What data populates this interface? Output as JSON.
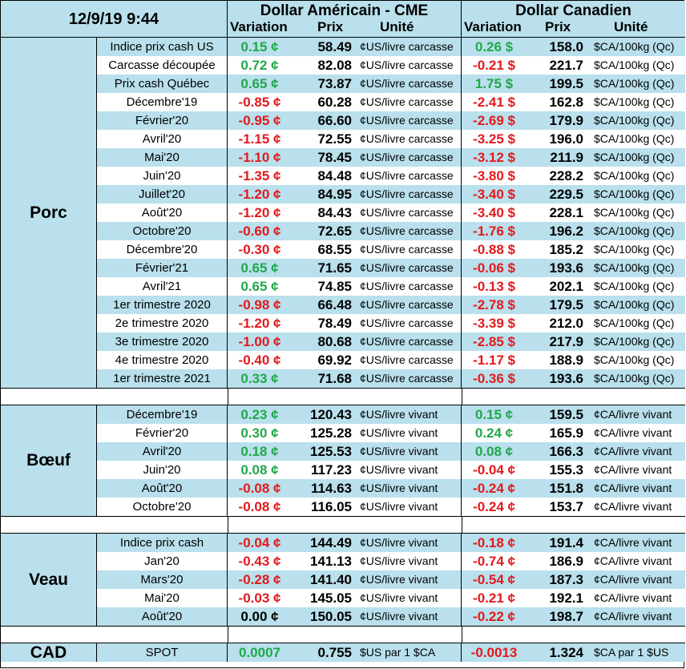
{
  "header": {
    "date": "12/9/19 9:44",
    "usd_title": "Dollar Américain - CME",
    "cad_title": "Dollar Canadien",
    "col_variation": "Variation",
    "col_prix": "Prix",
    "col_unite": "Unité"
  },
  "colors": {
    "positive": "#21a84a",
    "negative": "#e3191c",
    "row_blue": "#b9e0ec"
  },
  "sections": [
    {
      "name": "Porc",
      "rows": [
        {
          "label": "Indice prix cash US",
          "usd_var": "0.15 ¢",
          "usd_price": "58.49",
          "usd_unit": "¢US/livre carcasse",
          "cad_var": "0.26 $",
          "cad_price": "158.0",
          "cad_unit": "$CA/100kg (Qc)"
        },
        {
          "label": "Carcasse découpée",
          "usd_var": "0.72 ¢",
          "usd_price": "82.08",
          "usd_unit": "¢US/livre carcasse",
          "cad_var": "-0.21 $",
          "cad_price": "221.7",
          "cad_unit": "$CA/100kg (Qc)"
        },
        {
          "label": "Prix cash Québec",
          "usd_var": "0.65 ¢",
          "usd_price": "73.87",
          "usd_unit": "¢US/livre carcasse",
          "cad_var": "1.75 $",
          "cad_price": "199.5",
          "cad_unit": "$CA/100kg (Qc)"
        },
        {
          "label": "Décembre'19",
          "usd_var": "-0.85 ¢",
          "usd_price": "60.28",
          "usd_unit": "¢US/livre carcasse",
          "cad_var": "-2.41 $",
          "cad_price": "162.8",
          "cad_unit": "$CA/100kg (Qc)"
        },
        {
          "label": "Février'20",
          "usd_var": "-0.95 ¢",
          "usd_price": "66.60",
          "usd_unit": "¢US/livre carcasse",
          "cad_var": "-2.69 $",
          "cad_price": "179.9",
          "cad_unit": "$CA/100kg (Qc)"
        },
        {
          "label": "Avril'20",
          "usd_var": "-1.15 ¢",
          "usd_price": "72.55",
          "usd_unit": "¢US/livre carcasse",
          "cad_var": "-3.25 $",
          "cad_price": "196.0",
          "cad_unit": "$CA/100kg (Qc)"
        },
        {
          "label": "Mai'20",
          "usd_var": "-1.10 ¢",
          "usd_price": "78.45",
          "usd_unit": "¢US/livre carcasse",
          "cad_var": "-3.12 $",
          "cad_price": "211.9",
          "cad_unit": "$CA/100kg (Qc)"
        },
        {
          "label": "Juin'20",
          "usd_var": "-1.35 ¢",
          "usd_price": "84.48",
          "usd_unit": "¢US/livre carcasse",
          "cad_var": "-3.80 $",
          "cad_price": "228.2",
          "cad_unit": "$CA/100kg (Qc)"
        },
        {
          "label": "Juillet'20",
          "usd_var": "-1.20 ¢",
          "usd_price": "84.95",
          "usd_unit": "¢US/livre carcasse",
          "cad_var": "-3.40 $",
          "cad_price": "229.5",
          "cad_unit": "$CA/100kg (Qc)"
        },
        {
          "label": "Août'20",
          "usd_var": "-1.20 ¢",
          "usd_price": "84.43",
          "usd_unit": "¢US/livre carcasse",
          "cad_var": "-3.40 $",
          "cad_price": "228.1",
          "cad_unit": "$CA/100kg (Qc)"
        },
        {
          "label": "Octobre'20",
          "usd_var": "-0.60 ¢",
          "usd_price": "72.65",
          "usd_unit": "¢US/livre carcasse",
          "cad_var": "-1.76 $",
          "cad_price": "196.2",
          "cad_unit": "$CA/100kg (Qc)"
        },
        {
          "label": "Décembre'20",
          "usd_var": "-0.30 ¢",
          "usd_price": "68.55",
          "usd_unit": "¢US/livre carcasse",
          "cad_var": "-0.88 $",
          "cad_price": "185.2",
          "cad_unit": "$CA/100kg (Qc)"
        },
        {
          "label": "Février'21",
          "usd_var": "0.65 ¢",
          "usd_price": "71.65",
          "usd_unit": "¢US/livre carcasse",
          "cad_var": "-0.06 $",
          "cad_price": "193.6",
          "cad_unit": "$CA/100kg (Qc)"
        },
        {
          "label": "Avril'21",
          "usd_var": "0.65 ¢",
          "usd_price": "74.85",
          "usd_unit": "¢US/livre carcasse",
          "cad_var": "-0.13 $",
          "cad_price": "202.1",
          "cad_unit": "$CA/100kg (Qc)"
        },
        {
          "label": "1er trimestre 2020",
          "usd_var": "-0.98 ¢",
          "usd_price": "66.48",
          "usd_unit": "¢US/livre carcasse",
          "cad_var": "-2.78 $",
          "cad_price": "179.5",
          "cad_unit": "$CA/100kg (Qc)"
        },
        {
          "label": "2e trimestre 2020",
          "usd_var": "-1.20 ¢",
          "usd_price": "78.49",
          "usd_unit": "¢US/livre carcasse",
          "cad_var": "-3.39 $",
          "cad_price": "212.0",
          "cad_unit": "$CA/100kg (Qc)"
        },
        {
          "label": "3e trimestre 2020",
          "usd_var": "-1.00 ¢",
          "usd_price": "80.68",
          "usd_unit": "¢US/livre carcasse",
          "cad_var": "-2.85 $",
          "cad_price": "217.9",
          "cad_unit": "$CA/100kg (Qc)"
        },
        {
          "label": "4e trimestre 2020",
          "usd_var": "-0.40 ¢",
          "usd_price": "69.92",
          "usd_unit": "¢US/livre carcasse",
          "cad_var": "-1.17 $",
          "cad_price": "188.9",
          "cad_unit": "$CA/100kg (Qc)"
        },
        {
          "label": "1er trimestre 2021",
          "usd_var": "0.33 ¢",
          "usd_price": "71.68",
          "usd_unit": "¢US/livre carcasse",
          "cad_var": "-0.36 $",
          "cad_price": "193.6",
          "cad_unit": "$CA/100kg (Qc)"
        }
      ]
    },
    {
      "name": "Bœuf",
      "rows": [
        {
          "label": "Décembre'19",
          "usd_var": "0.23 ¢",
          "usd_price": "120.43",
          "usd_unit": "¢US/livre vivant",
          "cad_var": "0.15 ¢",
          "cad_price": "159.5",
          "cad_unit": "¢CA/livre vivant"
        },
        {
          "label": "Février'20",
          "usd_var": "0.30 ¢",
          "usd_price": "125.28",
          "usd_unit": "¢US/livre vivant",
          "cad_var": "0.24 ¢",
          "cad_price": "165.9",
          "cad_unit": "¢CA/livre vivant"
        },
        {
          "label": "Avril'20",
          "usd_var": "0.18 ¢",
          "usd_price": "125.53",
          "usd_unit": "¢US/livre vivant",
          "cad_var": "0.08 ¢",
          "cad_price": "166.3",
          "cad_unit": "¢CA/livre vivant"
        },
        {
          "label": "Juin'20",
          "usd_var": "0.08 ¢",
          "usd_price": "117.23",
          "usd_unit": "¢US/livre vivant",
          "cad_var": "-0.04 ¢",
          "cad_price": "155.3",
          "cad_unit": "¢CA/livre vivant"
        },
        {
          "label": "Août'20",
          "usd_var": "-0.08 ¢",
          "usd_price": "114.63",
          "usd_unit": "¢US/livre vivant",
          "cad_var": "-0.24 ¢",
          "cad_price": "151.8",
          "cad_unit": "¢CA/livre vivant"
        },
        {
          "label": "Octobre'20",
          "usd_var": "-0.08 ¢",
          "usd_price": "116.05",
          "usd_unit": "¢US/livre vivant",
          "cad_var": "-0.24 ¢",
          "cad_price": "153.7",
          "cad_unit": "¢CA/livre vivant"
        }
      ]
    },
    {
      "name": "Veau",
      "rows": [
        {
          "label": "Indice prix cash",
          "usd_var": "-0.04 ¢",
          "usd_price": "144.49",
          "usd_unit": "¢US/livre vivant",
          "cad_var": "-0.18 ¢",
          "cad_price": "191.4",
          "cad_unit": "¢CA/livre vivant"
        },
        {
          "label": "Jan'20",
          "usd_var": "-0.43 ¢",
          "usd_price": "141.13",
          "usd_unit": "¢US/livre vivant",
          "cad_var": "-0.74 ¢",
          "cad_price": "186.9",
          "cad_unit": "¢CA/livre vivant"
        },
        {
          "label": "Mars'20",
          "usd_var": "-0.28 ¢",
          "usd_price": "141.40",
          "usd_unit": "¢US/livre vivant",
          "cad_var": "-0.54 ¢",
          "cad_price": "187.3",
          "cad_unit": "¢CA/livre vivant"
        },
        {
          "label": "Mai'20",
          "usd_var": "-0.03 ¢",
          "usd_price": "145.05",
          "usd_unit": "¢US/livre vivant",
          "cad_var": "-0.21 ¢",
          "cad_price": "192.1",
          "cad_unit": "¢CA/livre vivant"
        },
        {
          "label": "Août'20",
          "usd_var": "0.00 ¢",
          "usd_price": "150.05",
          "usd_unit": "¢US/livre vivant",
          "cad_var": "-0.22 ¢",
          "cad_price": "198.7",
          "cad_unit": "¢CA/livre vivant"
        }
      ]
    },
    {
      "name": "CAD",
      "rows": [
        {
          "label": "SPOT",
          "usd_var": "0.0007",
          "usd_price": "0.755",
          "usd_unit": "$US par 1 $CA",
          "cad_var": "-0.0013",
          "cad_price": "1.324",
          "cad_unit": "$CA par 1 $US"
        }
      ]
    }
  ]
}
